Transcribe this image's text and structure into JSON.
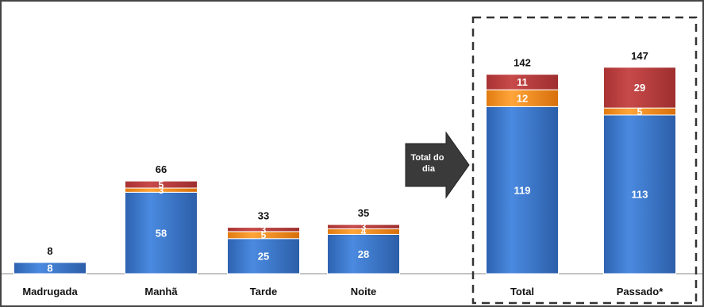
{
  "chart_data": {
    "type": "bar",
    "stacked": true,
    "categories": [
      "Madrugada",
      "Manhã",
      "Tarde",
      "Noite",
      "Total",
      "Passado*"
    ],
    "series": [
      {
        "values": [
          8,
          58,
          25,
          28,
          119,
          113
        ],
        "color": "#3f7bd0"
      },
      {
        "values": [
          0,
          3,
          5,
          4,
          12,
          5
        ],
        "color": "#f28e1c"
      },
      {
        "values": [
          0,
          5,
          3,
          3,
          11,
          29
        ],
        "color": "#b83c3c"
      }
    ],
    "totals": [
      8,
      66,
      33,
      35,
      142,
      147
    ],
    "arrow_label": "Total do dia",
    "highlight_box": "dashed border around Total and Passado*",
    "legend": "none",
    "grid": false
  }
}
